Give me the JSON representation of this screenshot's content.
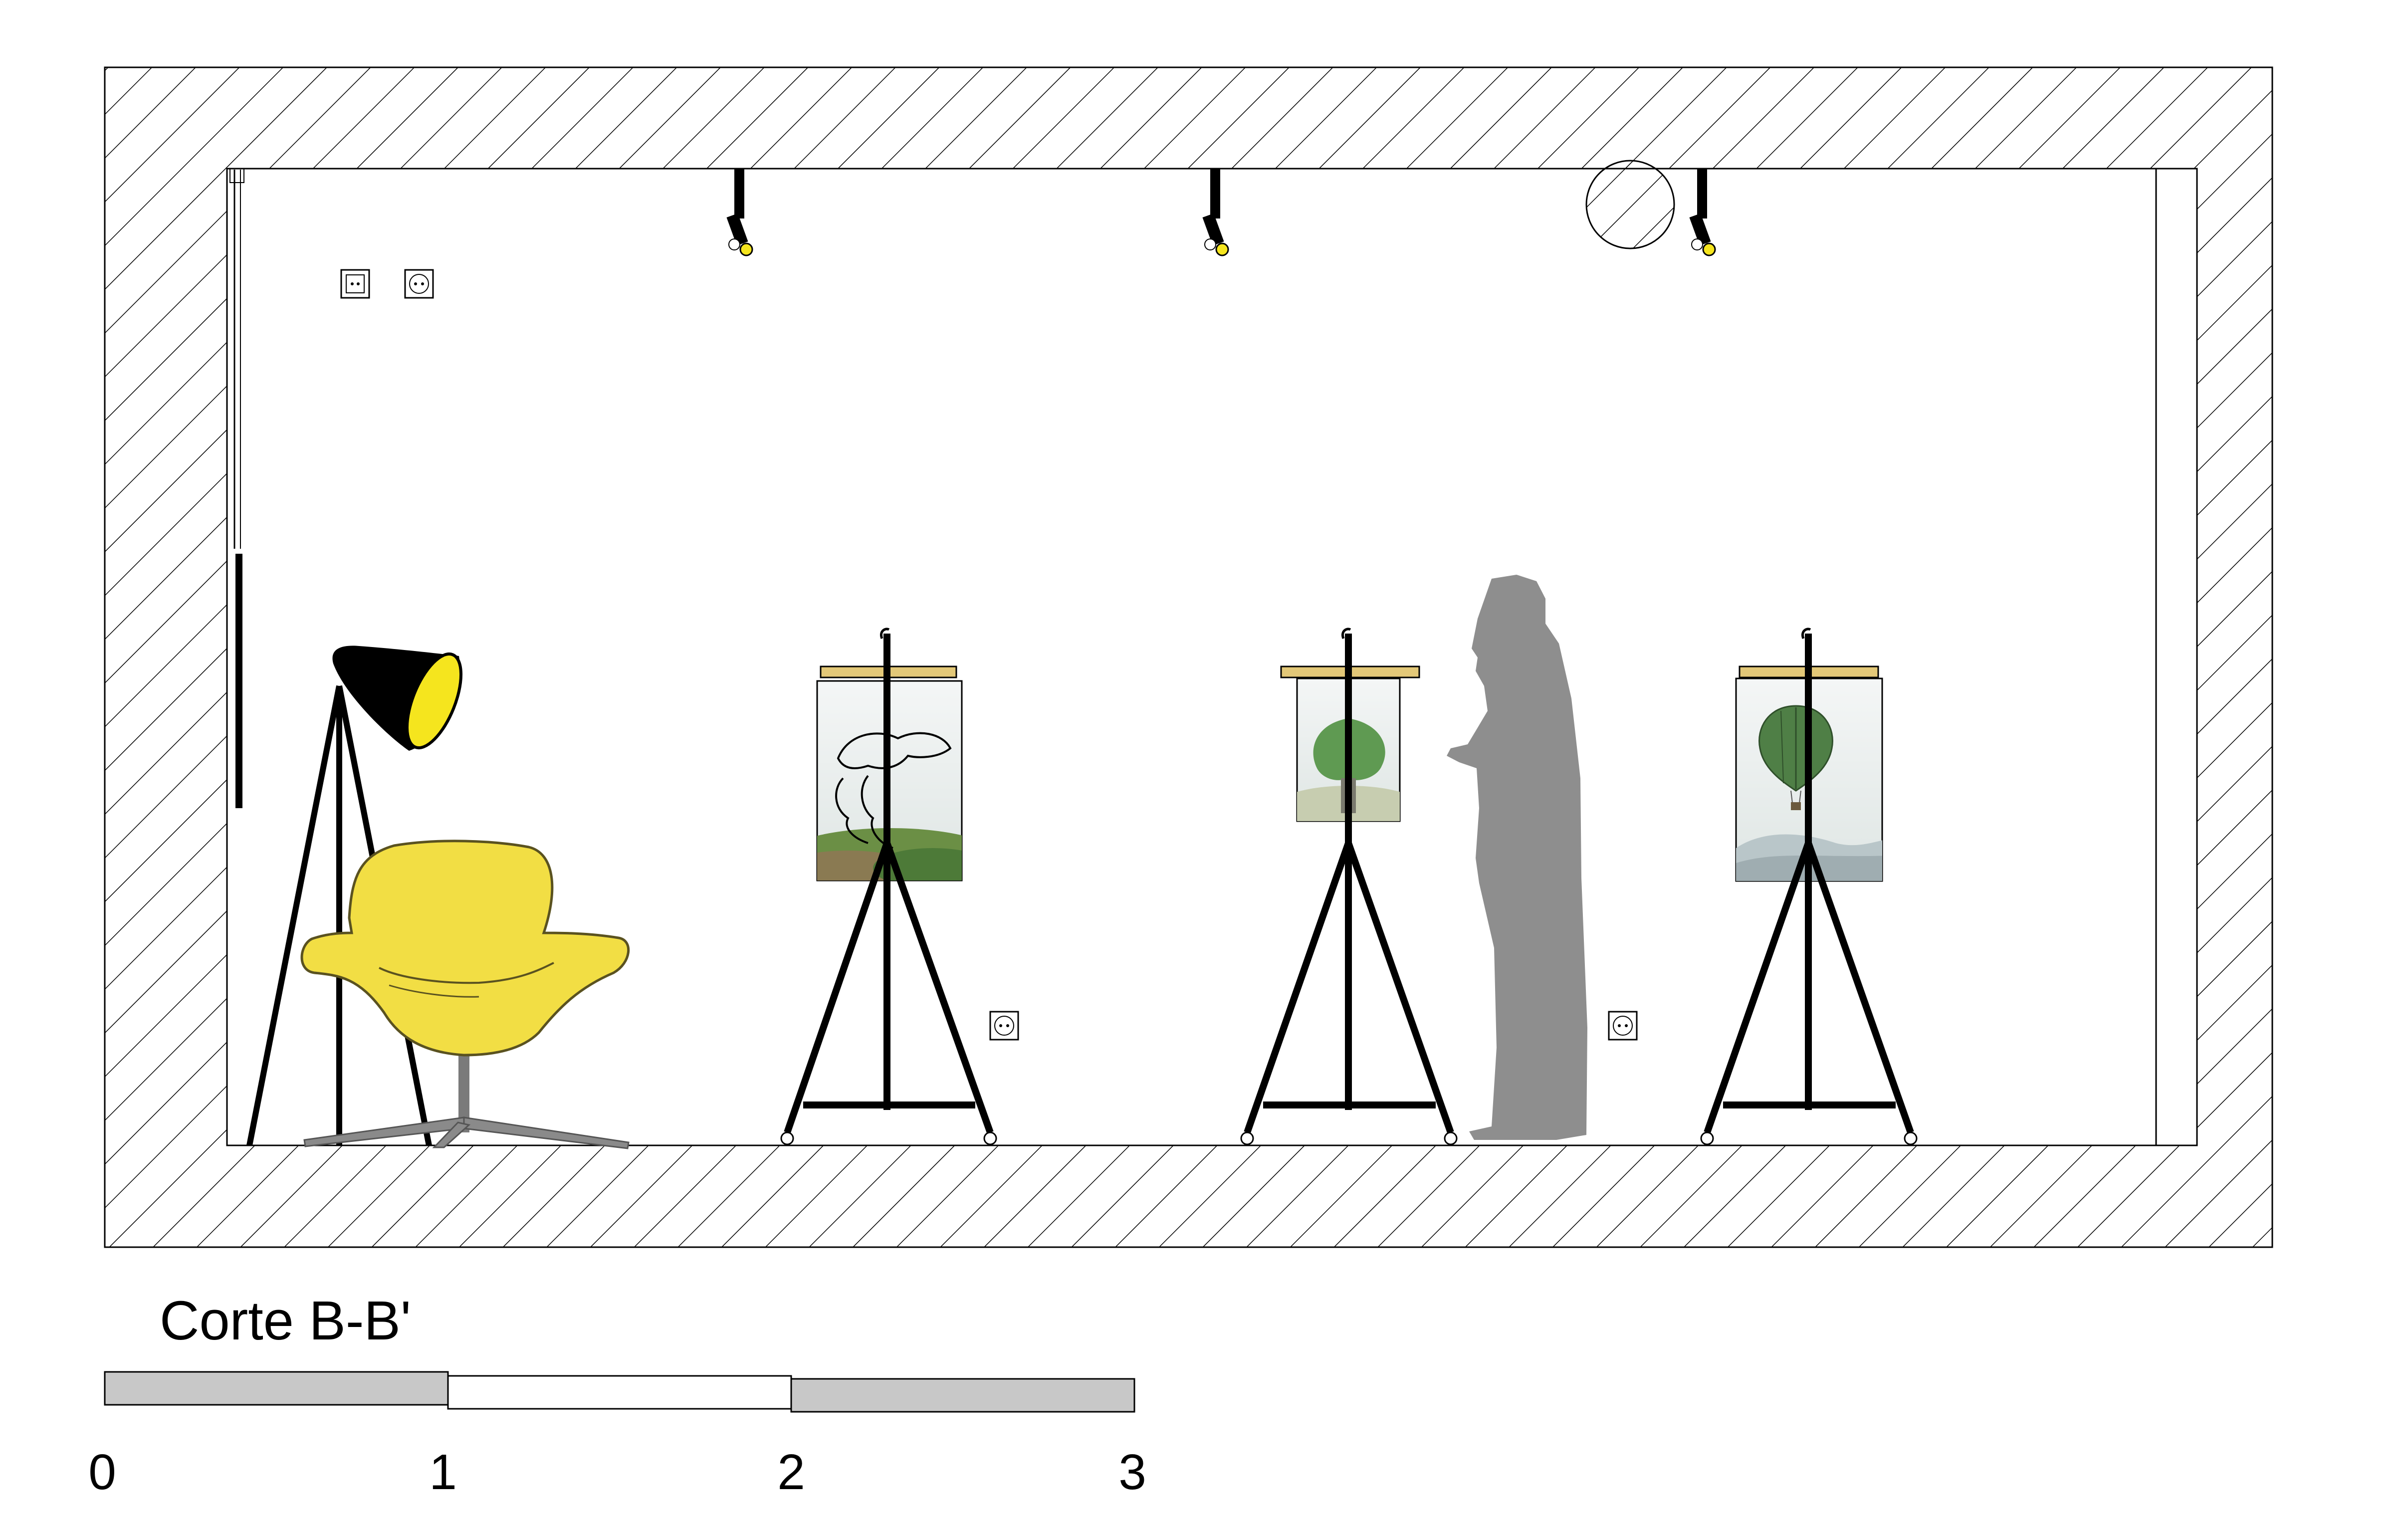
{
  "section": {
    "title": "Corte B-B'"
  },
  "scale_bar": {
    "labels": [
      "0",
      "1",
      "2",
      "3"
    ],
    "segment_colors": [
      "#c8c8c8",
      "#ffffff",
      "#c8c8c8"
    ]
  },
  "colors": {
    "wall_hatch": "#000000",
    "chair": "#f2de44",
    "chair_outline": "#5a5220",
    "lamp_shade": "#000000",
    "lamp_light": "#f5e51e",
    "easel": "#000000",
    "board": "#e3c878",
    "person_silhouette": "#8e8e8e",
    "chair_base": "#8a8a8a"
  },
  "elements": {
    "icons": [
      "track-spotlight-icon",
      "wall-switch-icon",
      "power-outlet-icon",
      "floor-lamp-icon",
      "armchair-icon",
      "easel-icon",
      "person-silhouette-icon",
      "ceiling-fixture-icon",
      "door-edge-icon"
    ],
    "artworks": [
      "tree-faces-artwork",
      "leaf-elephant-artwork",
      "cactus-balloon-artwork"
    ]
  }
}
